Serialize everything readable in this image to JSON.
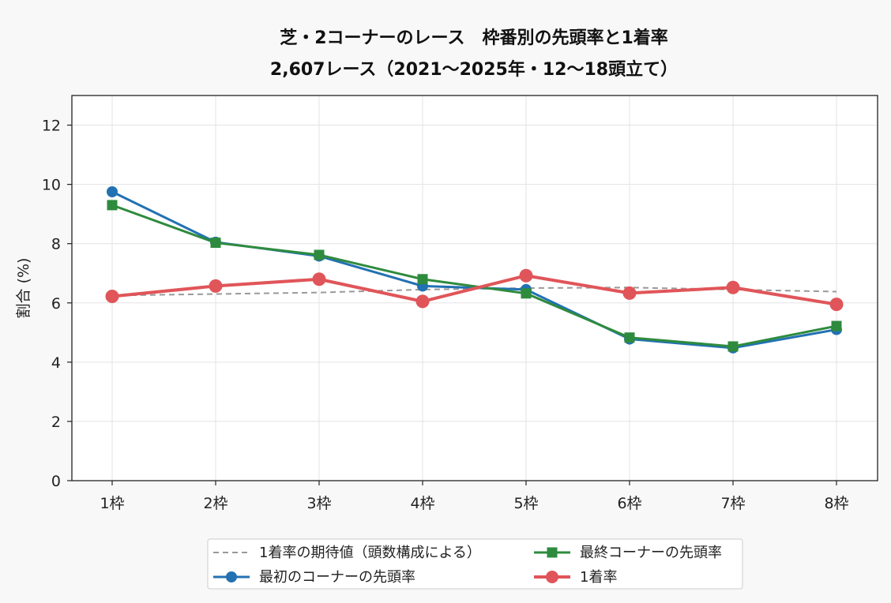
{
  "chart_data": {
    "type": "line",
    "title": "芝・2コーナーのレース　枠番別の先頭率と1着率",
    "subtitle": "2,607レース（2021〜2025年・12〜18頭立て）",
    "xlabel": "",
    "ylabel": "割合 (%)",
    "ylim": [
      0,
      13
    ],
    "yticks": [
      0,
      2,
      4,
      6,
      8,
      10,
      12
    ],
    "grid": true,
    "legend_position": "bottom-center",
    "categories": [
      "1枠",
      "2枠",
      "3枠",
      "4枠",
      "5枠",
      "6枠",
      "7枠",
      "8枠"
    ],
    "series": [
      {
        "name": "1着率の期待値（頭数構成による）",
        "style": "dashed",
        "color": "#999999",
        "marker": "none",
        "values": [
          6.25,
          6.3,
          6.35,
          6.45,
          6.5,
          6.52,
          6.45,
          6.38
        ]
      },
      {
        "name": "最初のコーナーの先頭率",
        "style": "solid",
        "color": "#2271b3",
        "marker": "circle",
        "values": [
          9.75,
          8.05,
          7.58,
          6.57,
          6.45,
          4.78,
          4.48,
          5.1
        ]
      },
      {
        "name": "最終コーナーの先頭率",
        "style": "solid",
        "color": "#2e8b3e",
        "marker": "square",
        "values": [
          9.3,
          8.03,
          7.62,
          6.8,
          6.32,
          4.83,
          4.53,
          5.22
        ]
      },
      {
        "name": "1着率",
        "style": "solid",
        "color": "#e05559",
        "marker": "circle",
        "values": [
          6.22,
          6.57,
          6.8,
          6.05,
          6.92,
          6.33,
          6.52,
          5.95
        ]
      }
    ]
  }
}
